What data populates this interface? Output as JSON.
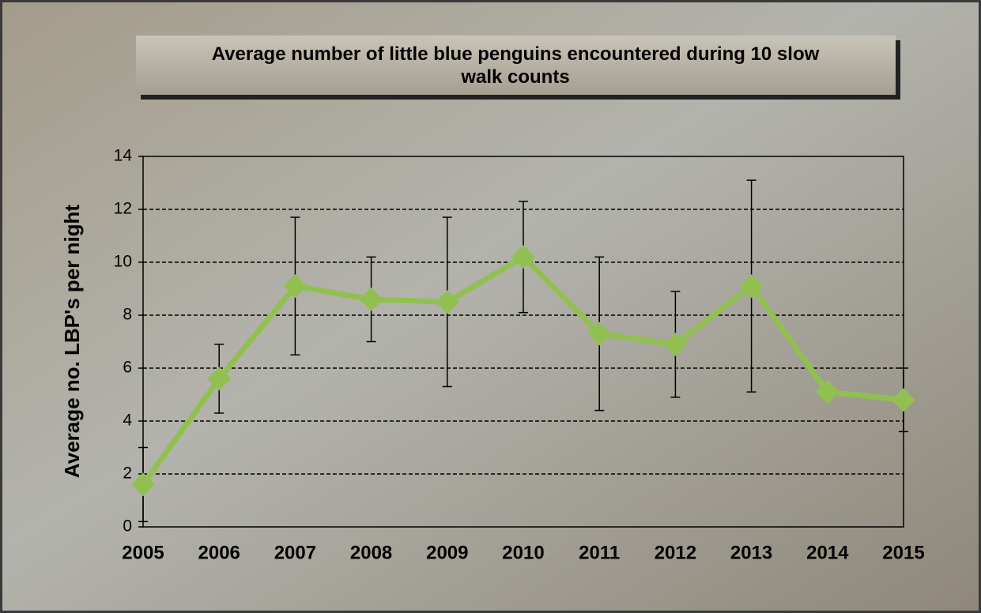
{
  "chart_data": {
    "type": "line",
    "title": "Average number of little blue penguins encountered during 10 slow walk counts",
    "y_label": "Average no. LBP's per night",
    "categories": [
      "2005",
      "2006",
      "2007",
      "2008",
      "2009",
      "2010",
      "2011",
      "2012",
      "2013",
      "2014",
      "2015"
    ],
    "series": [
      {
        "color": "#92c050",
        "values": [
          1.6,
          5.6,
          9.1,
          8.6,
          8.5,
          10.2,
          7.3,
          6.9,
          9.1,
          5.1,
          4.8
        ],
        "errors": [
          1.4,
          1.3,
          2.6,
          1.6,
          3.2,
          2.1,
          2.9,
          2.0,
          4.0,
          null,
          1.2
        ]
      }
    ],
    "ylim": [
      0,
      14
    ],
    "yticks": [
      0,
      2,
      4,
      6,
      8,
      10,
      12,
      14
    ],
    "grid": true
  }
}
